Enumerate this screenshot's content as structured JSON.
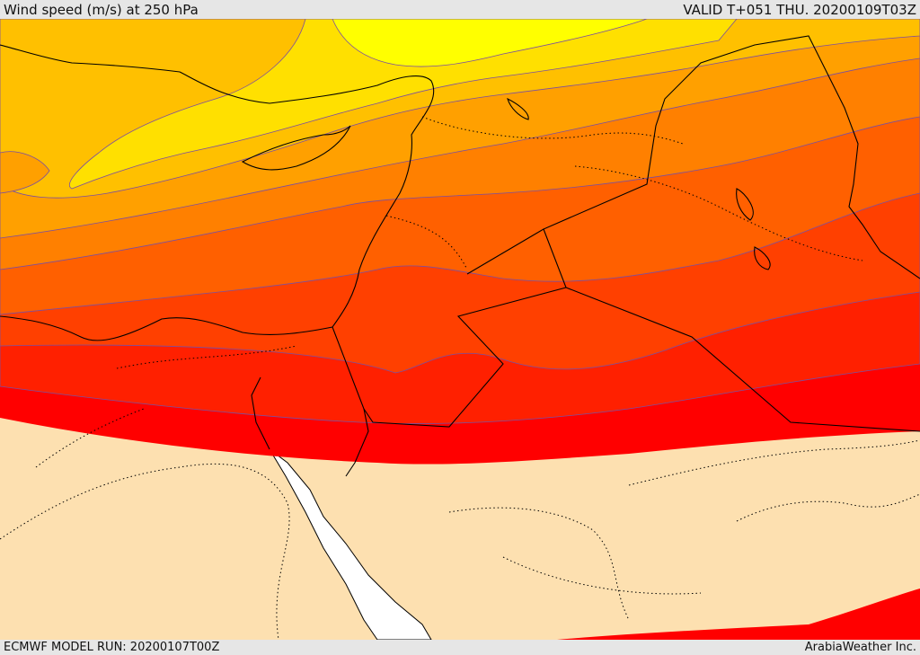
{
  "header": {
    "title": "Wind speed (m/s) at 250 hPa",
    "valid_time": "VALID T+051 THU. 20200109T03Z"
  },
  "footer": {
    "model_run": "ECMWF MODEL RUN: 20200107T00Z",
    "credit": "ArabiaWeather Inc."
  },
  "map": {
    "land_color": "#fde0b0",
    "sea_color": "#ffffff",
    "wind_band_colors": [
      "#ffff00",
      "#ffe000",
      "#ffc000",
      "#ffa000",
      "#ff8000",
      "#ff6000",
      "#ff4000",
      "#ff2000",
      "#ff0000"
    ]
  }
}
